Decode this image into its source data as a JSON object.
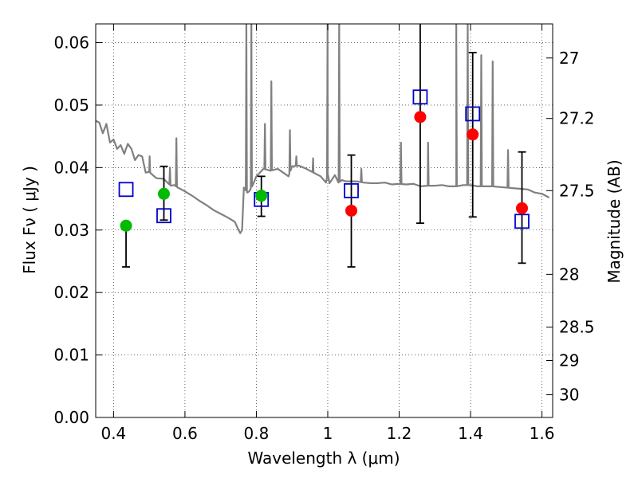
{
  "chart_data": {
    "type": "scatter",
    "title": "",
    "xlabel": "Wavelength  λ (μm)",
    "ylabel": "Flux  Fν  ( μJy )",
    "y2label": "Magnitude (AB)",
    "xlim": [
      0.35,
      1.63
    ],
    "ylim": [
      0.0,
      0.063
    ],
    "grid": true,
    "colors": {
      "spectrum": "#808080",
      "green_points": "#00bb00",
      "red_points": "#ff0000",
      "model_squares": "#0000cc",
      "error_bars": "#000000"
    },
    "x_ticks": [
      {
        "value": 0.4,
        "label": "0.4"
      },
      {
        "value": 0.6,
        "label": "0.6"
      },
      {
        "value": 0.8,
        "label": "0.8"
      },
      {
        "value": 1.0,
        "label": "1"
      },
      {
        "value": 1.2,
        "label": "1.2"
      },
      {
        "value": 1.4,
        "label": "1.4"
      },
      {
        "value": 1.6,
        "label": "1.6"
      }
    ],
    "y_ticks": [
      {
        "value": 0.0,
        "label": "0.00"
      },
      {
        "value": 0.01,
        "label": "0.01"
      },
      {
        "value": 0.02,
        "label": "0.02"
      },
      {
        "value": 0.03,
        "label": "0.03"
      },
      {
        "value": 0.04,
        "label": "0.04"
      },
      {
        "value": 0.05,
        "label": "0.05"
      },
      {
        "value": 0.06,
        "label": "0.06"
      }
    ],
    "y2_ticks": [
      {
        "value": 27.0,
        "label": "27"
      },
      {
        "value": 27.2,
        "label": "27.2"
      },
      {
        "value": 27.5,
        "label": "27.5"
      },
      {
        "value": 28.0,
        "label": "28"
      },
      {
        "value": 28.5,
        "label": "28.5"
      },
      {
        "value": 29.0,
        "label": "29"
      },
      {
        "value": 30.0,
        "label": "30"
      }
    ],
    "series": [
      {
        "type": "line",
        "x": [
          0.35,
          0.36,
          0.37,
          0.38,
          0.39,
          0.4,
          0.41,
          0.42,
          0.43,
          0.44,
          0.45,
          0.46,
          0.47,
          0.48,
          0.49,
          0.5,
          0.52,
          0.54,
          0.56,
          0.57,
          0.58,
          0.6,
          0.62,
          0.64,
          0.66,
          0.68,
          0.7,
          0.72,
          0.74,
          0.75,
          0.755,
          0.76,
          0.765,
          0.775,
          0.78,
          0.79,
          0.8,
          0.82,
          0.84,
          0.86,
          0.88,
          0.89,
          0.9,
          0.92,
          0.94,
          0.96,
          0.98,
          0.995,
          1.0,
          1.005,
          1.02,
          1.03,
          1.04,
          1.05,
          1.06,
          1.08,
          1.1,
          1.12,
          1.14,
          1.16,
          1.18,
          1.2,
          1.22,
          1.24,
          1.26,
          1.28,
          1.3,
          1.32,
          1.34,
          1.36,
          1.38,
          1.4,
          1.42,
          1.44,
          1.46,
          1.48,
          1.5,
          1.52,
          1.54,
          1.56,
          1.58,
          1.6,
          1.62
        ],
        "y": [
          0.0475,
          0.0472,
          0.0455,
          0.047,
          0.044,
          0.0445,
          0.043,
          0.0436,
          0.0422,
          0.0438,
          0.043,
          0.0412,
          0.042,
          0.0418,
          0.0392,
          0.0393,
          0.0383,
          0.0382,
          0.0371,
          0.0372,
          0.0368,
          0.0362,
          0.0355,
          0.0347,
          0.034,
          0.0332,
          0.0326,
          0.032,
          0.0313,
          0.03,
          0.0295,
          0.03,
          0.0368,
          0.036,
          0.0362,
          0.0372,
          0.0386,
          0.0398,
          0.0395,
          0.0398,
          0.039,
          0.0386,
          0.0402,
          0.0403,
          0.0398,
          0.0392,
          0.0386,
          0.0376,
          0.039,
          0.0375,
          0.0388,
          0.0376,
          0.038,
          0.0378,
          0.0378,
          0.0378,
          0.0376,
          0.0375,
          0.0375,
          0.0376,
          0.0373,
          0.0374,
          0.0373,
          0.0374,
          0.037,
          0.0371,
          0.0371,
          0.0372,
          0.037,
          0.037,
          0.0372,
          0.0372,
          0.037,
          0.037,
          0.037,
          0.0369,
          0.0368,
          0.0367,
          0.0366,
          0.0365,
          0.036,
          0.0358,
          0.0352
        ]
      },
      {
        "type": "emission_lines",
        "lines": [
          {
            "x": 0.4345,
            "peak": 0.043
          },
          {
            "x": 0.501,
            "peak": 0.0418
          },
          {
            "x": 0.558,
            "peak": 0.04
          },
          {
            "x": 0.576,
            "peak": 0.0447
          },
          {
            "x": 0.772,
            "peak": 0.063
          },
          {
            "x": 0.786,
            "peak": 0.063
          },
          {
            "x": 0.824,
            "peak": 0.047
          },
          {
            "x": 0.842,
            "peak": 0.0538
          },
          {
            "x": 0.894,
            "peak": 0.046
          },
          {
            "x": 0.912,
            "peak": 0.0418
          },
          {
            "x": 0.959,
            "peak": 0.0415
          },
          {
            "x": 0.9995,
            "peak": 0.063
          },
          {
            "x": 1.032,
            "peak": 0.063
          },
          {
            "x": 1.094,
            "peak": 0.0398
          },
          {
            "x": 1.205,
            "peak": 0.044
          },
          {
            "x": 1.281,
            "peak": 0.044
          },
          {
            "x": 1.36,
            "peak": 0.063
          },
          {
            "x": 1.392,
            "peak": 0.063
          },
          {
            "x": 1.43,
            "peak": 0.058
          },
          {
            "x": 1.462,
            "peak": 0.057
          },
          {
            "x": 1.505,
            "peak": 0.0428
          }
        ]
      },
      {
        "type": "scatter",
        "points": [
          {
            "x": 0.435,
            "y": 0.0307,
            "yerr_low": 0.0241,
            "yerr_high": null
          },
          {
            "x": 0.541,
            "y": 0.0358,
            "yerr_low": 0.0316,
            "yerr_high": 0.0402
          },
          {
            "x": 0.814,
            "y": 0.0355,
            "yerr_low": 0.0322,
            "yerr_high": 0.0386
          }
        ]
      },
      {
        "type": "scatter",
        "points": [
          {
            "x": 1.066,
            "y": 0.0331,
            "yerr_low": 0.0241,
            "yerr_high": 0.042
          },
          {
            "x": 1.259,
            "y": 0.0481,
            "yerr_low": 0.0311,
            "yerr_high": 0.065
          },
          {
            "x": 1.406,
            "y": 0.0453,
            "yerr_low": 0.0321,
            "yerr_high": 0.0584
          },
          {
            "x": 1.544,
            "y": 0.0335,
            "yerr_low": 0.0247,
            "yerr_high": 0.0425
          }
        ]
      },
      {
        "type": "scatter",
        "points": [
          {
            "x": 0.435,
            "y": 0.0365
          },
          {
            "x": 0.541,
            "y": 0.0323
          },
          {
            "x": 0.814,
            "y": 0.0349
          },
          {
            "x": 1.066,
            "y": 0.0363
          },
          {
            "x": 1.259,
            "y": 0.0513
          },
          {
            "x": 1.406,
            "y": 0.0486
          },
          {
            "x": 1.544,
            "y": 0.0314
          }
        ]
      }
    ]
  }
}
